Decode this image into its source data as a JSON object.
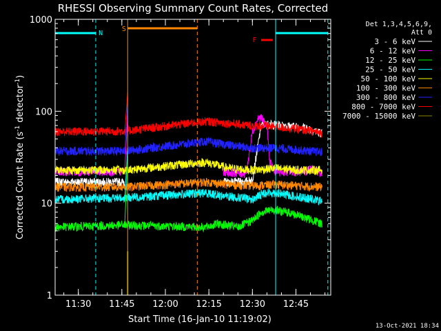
{
  "chart_data": {
    "type": "line",
    "title": "RHESSI Observing Summary Count Rates, Corrected",
    "xlabel": "Start Time (16-Jan-10 11:19:02)",
    "ylabel": "Corrected Count Rate (s⁻¹ detector⁻¹)",
    "ylabel_main": "Corrected Count Rate (s",
    "ylabel_sup1": "-1",
    "ylabel_mid": " detector",
    "ylabel_sup2": "-1",
    "ylabel_end": ")",
    "y_scale": "log",
    "ylim": [
      1,
      1000
    ],
    "xlim": [
      "11:22",
      "12:57"
    ],
    "y_ticks": [
      "1",
      "10",
      "100",
      "1000"
    ],
    "x_ticks": [
      "11:30",
      "11:45",
      "12:00",
      "12:15",
      "12:30",
      "12:45"
    ],
    "grid": false,
    "footer_date": "13-Oct-2021 18:34",
    "legend": {
      "position": "right",
      "header_line1": "Det 1,3,4,5,6,9,",
      "header_line2": "Att 0"
    },
    "series": [
      {
        "name": "3 - 6 keV",
        "color": "#ffffff",
        "x": [
          "11:22",
          "11:46",
          "11:50",
          "12:13",
          "12:20",
          "12:27",
          "12:30",
          "12:33",
          "12:34",
          "12:36",
          "12:41",
          "12:45",
          "12:48",
          "12:50",
          "12:52",
          "12:54"
        ],
        "y": [
          17,
          17,
          null,
          null,
          17,
          17,
          18,
          70,
          72,
          72,
          70,
          68,
          67,
          64,
          60,
          58
        ]
      },
      {
        "name": "6 - 12 keV",
        "color": "#ff00ff",
        "x": [
          "11:22",
          "11:46",
          "11:50",
          "12:13",
          "12:20",
          "12:27",
          "12:28",
          "12:30",
          "12:32",
          "12:33",
          "12:35",
          "12:36",
          "12:38",
          "12:45",
          "12:48",
          "12:50",
          "12:54"
        ],
        "y": [
          22,
          22,
          null,
          null,
          22,
          21,
          22,
          60,
          84,
          85,
          70,
          28,
          22,
          22,
          22,
          24,
          21
        ]
      },
      {
        "name": "12 - 25 keV",
        "color": "#00ff00",
        "x": [
          "11:22",
          "11:46",
          "12:14",
          "12:18",
          "12:25",
          "12:30",
          "12:33",
          "12:37",
          "12:42",
          "12:48",
          "12:54"
        ],
        "y": [
          5.5,
          5.8,
          5.5,
          6.0,
          5.5,
          6.5,
          8.0,
          8.5,
          8.0,
          7.0,
          6.0
        ]
      },
      {
        "name": "25 - 50 keV",
        "color": "#00ffff",
        "x": [
          "11:22",
          "11:46",
          "12:14",
          "12:20",
          "12:26",
          "12:30",
          "12:34",
          "12:38",
          "12:44",
          "12:48",
          "12:54"
        ],
        "y": [
          11,
          11.5,
          13,
          12,
          11.5,
          11,
          13,
          13,
          12,
          11.5,
          10.5
        ]
      },
      {
        "name": "50 - 100 keV",
        "color": "#ffff00",
        "x": [
          "11:22",
          "11:46",
          "12:14",
          "12:22",
          "12:30",
          "12:38",
          "12:46",
          "12:54"
        ],
        "y": [
          23,
          23,
          28,
          24,
          23,
          24,
          23,
          23
        ]
      },
      {
        "name": "100 - 300 keV",
        "color": "#ff8800",
        "x": [
          "11:22",
          "11:46",
          "12:14",
          "12:22",
          "12:30",
          "12:38",
          "12:46",
          "12:54"
        ],
        "y": [
          15,
          15,
          17,
          16,
          15.5,
          16,
          15.5,
          15
        ]
      },
      {
        "name": "300 - 800 keV",
        "color": "#2222ff",
        "x": [
          "11:22",
          "11:46",
          "12:14",
          "12:22",
          "12:30",
          "12:38",
          "12:46",
          "12:54"
        ],
        "y": [
          37,
          37,
          47,
          43,
          40,
          40,
          38,
          36
        ]
      },
      {
        "name": "800 - 7000 keV",
        "color": "#ff0000",
        "x": [
          "11:22",
          "11:46",
          "12:14",
          "12:22",
          "12:30",
          "12:38",
          "12:46",
          "12:54"
        ],
        "y": [
          60,
          61,
          78,
          74,
          70,
          68,
          64,
          58
        ]
      },
      {
        "name": "7000 - 15000 keV",
        "color": "#888800",
        "x": [],
        "y": []
      }
    ],
    "annotations": [
      {
        "label": "N",
        "color": "#00ffff"
      },
      {
        "label": "S",
        "color": "#ff8800"
      },
      {
        "label": "F",
        "color": "#ff0000"
      }
    ]
  }
}
